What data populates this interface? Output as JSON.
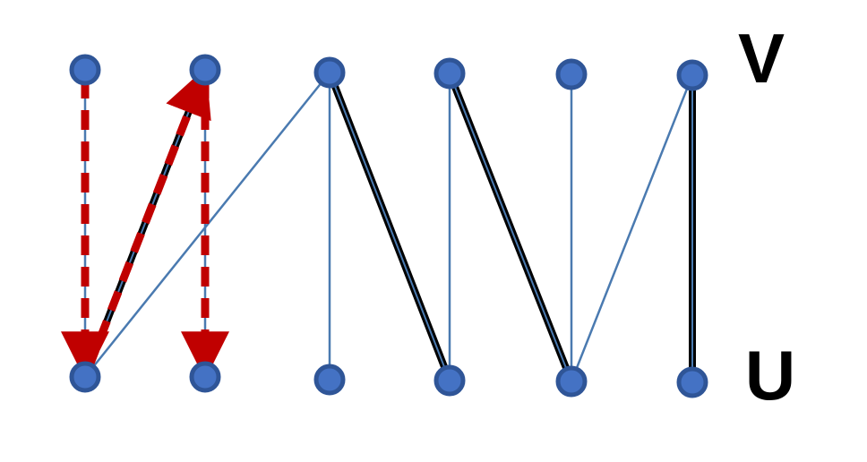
{
  "colors": {
    "node_fill": "#4472c4",
    "node_stroke": "#2f5597",
    "edge": "#4a7ab0",
    "matching": "#000000",
    "path": "#c00000"
  },
  "labels": {
    "top_set": "V",
    "bottom_set": "U"
  },
  "nodes": {
    "V": [
      "v1",
      "v2",
      "v3",
      "v4",
      "v5",
      "v6"
    ],
    "U": [
      "u1",
      "u2",
      "u3",
      "u4",
      "u5",
      "u6"
    ]
  },
  "edges": [
    {
      "from": "u1",
      "to": "v1",
      "type": "plain"
    },
    {
      "from": "u1",
      "to": "v2",
      "type": "matching"
    },
    {
      "from": "u1",
      "to": "v3",
      "type": "plain"
    },
    {
      "from": "u2",
      "to": "v2",
      "type": "plain"
    },
    {
      "from": "u3",
      "to": "v3",
      "type": "plain"
    },
    {
      "from": "u4",
      "to": "v3",
      "type": "matching"
    },
    {
      "from": "u4",
      "to": "v4",
      "type": "plain"
    },
    {
      "from": "u5",
      "to": "v4",
      "type": "matching"
    },
    {
      "from": "u5",
      "to": "v5",
      "type": "plain"
    },
    {
      "from": "u5",
      "to": "v6",
      "type": "plain"
    },
    {
      "from": "u6",
      "to": "v6",
      "type": "matching"
    }
  ],
  "path_arrows": [
    {
      "from": "v1",
      "to": "u1"
    },
    {
      "from": "u1",
      "to": "v2"
    },
    {
      "from": "v2",
      "to": "u2"
    }
  ]
}
